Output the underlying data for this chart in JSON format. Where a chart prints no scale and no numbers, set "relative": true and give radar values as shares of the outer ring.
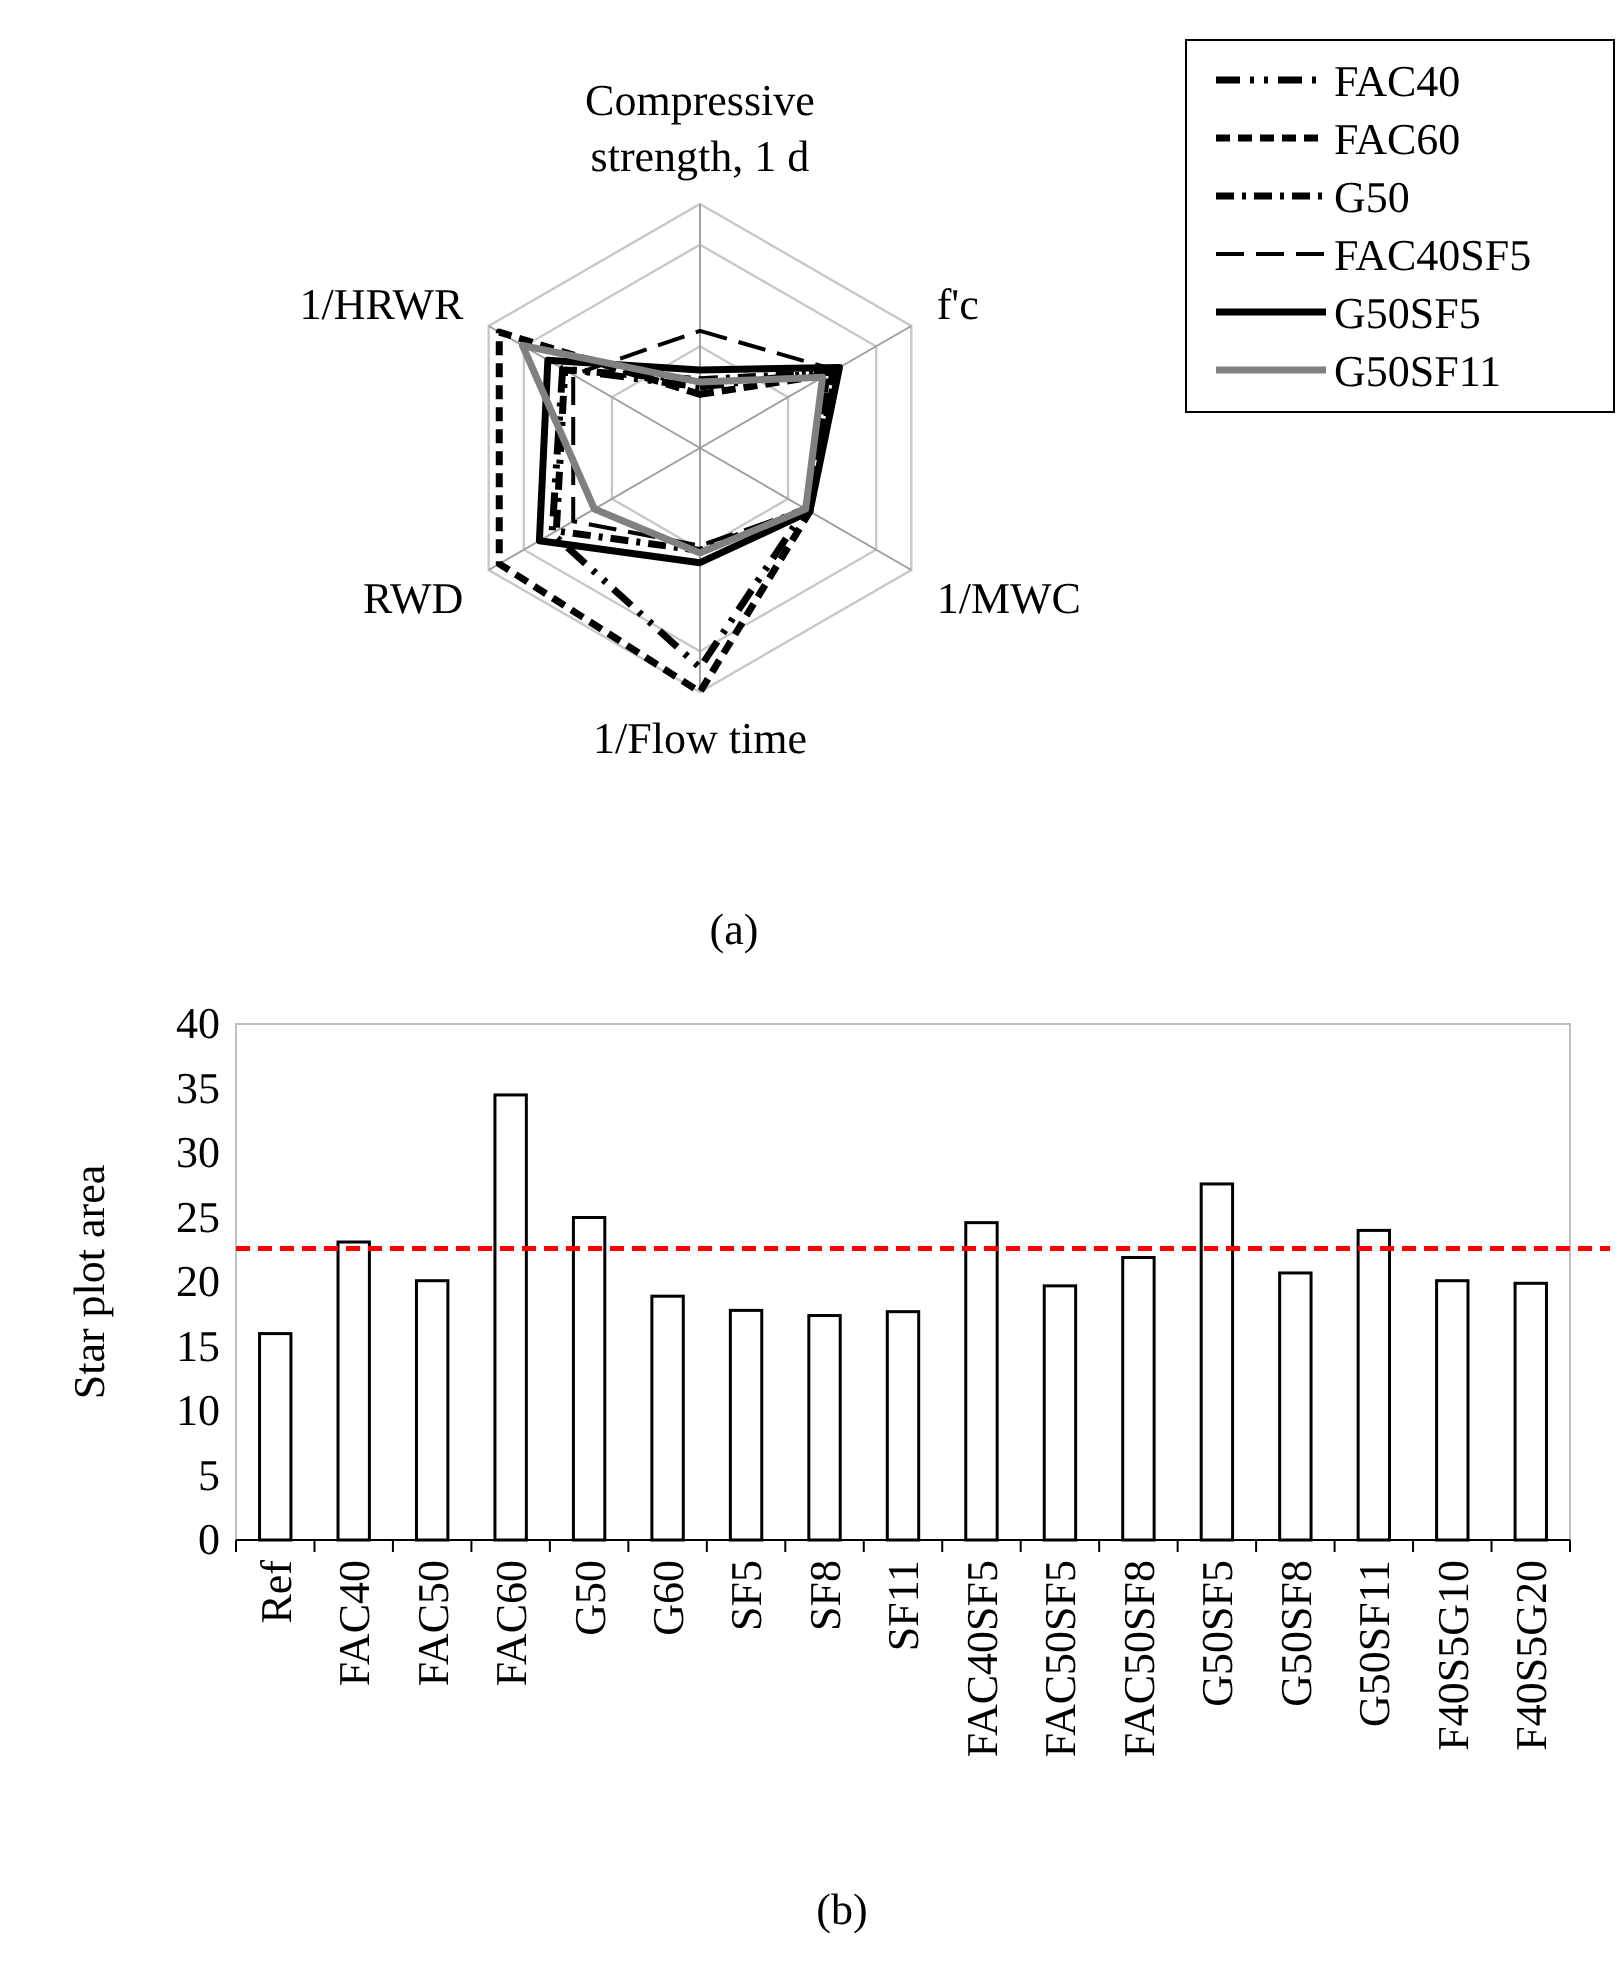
{
  "chart_data": [
    {
      "type": "radar",
      "relative": true,
      "legend": "top right",
      "annotations": [
        "(a)"
      ],
      "categories": [
        "Compressive strength, 1 d",
        "f'c",
        "1/MWC",
        "1/Flow time",
        "RWD",
        "1/HRWR"
      ],
      "series": [
        {
          "name": "FAC40",
          "color": "#000000",
          "line_style": "dashdotdot",
          "values": [
            0.25,
            0.63,
            0.5,
            0.9,
            0.7,
            0.65
          ]
        },
        {
          "name": "FAC60",
          "color": "#000000",
          "line_style": "dashed",
          "values": [
            0.22,
            0.6,
            0.52,
            1.0,
            0.95,
            0.95
          ]
        },
        {
          "name": "G50",
          "color": "#000000",
          "line_style": "dashdot",
          "values": [
            0.28,
            0.62,
            0.5,
            0.42,
            0.68,
            0.64
          ]
        },
        {
          "name": "FAC40SF5",
          "color": "#000000",
          "line_style": "longdashed",
          "values": [
            0.48,
            0.64,
            0.5,
            0.4,
            0.6,
            0.6
          ]
        },
        {
          "name": "G50SF5",
          "color": "#000000",
          "line_style": "solid",
          "values": [
            0.32,
            0.66,
            0.52,
            0.47,
            0.76,
            0.72
          ]
        },
        {
          "name": "G50SF11",
          "color": "#808080",
          "line_style": "solid",
          "values": [
            0.27,
            0.58,
            0.5,
            0.43,
            0.5,
            0.84
          ]
        }
      ]
    },
    {
      "type": "bar",
      "ylabel": "Star plot area",
      "annotations": [
        "(b)"
      ],
      "color": "#ffffff",
      "categories": [
        "Ref",
        "FAC40",
        "FAC50",
        "FAC60",
        "G50",
        "G60",
        "SF5",
        "SF8",
        "SF11",
        "FAC40SF5",
        "FAC50SF5",
        "FAC50SF8",
        "G50SF5",
        "G50SF8",
        "G50SF11",
        "F40S5G10",
        "F40S5G20"
      ],
      "values": [
        16.0,
        23.1,
        20.1,
        34.5,
        25.0,
        18.9,
        17.8,
        17.4,
        17.7,
        24.6,
        19.7,
        21.9,
        27.6,
        20.7,
        24.0,
        20.1,
        19.9
      ],
      "ylim": [
        0,
        40
      ],
      "yticks": [
        0,
        5,
        10,
        15,
        20,
        25,
        30,
        35,
        40
      ],
      "ref_lines": [
        {
          "axis": "y",
          "value": 22.6,
          "color": "#ff0000",
          "line_style": "dashed"
        }
      ]
    }
  ]
}
